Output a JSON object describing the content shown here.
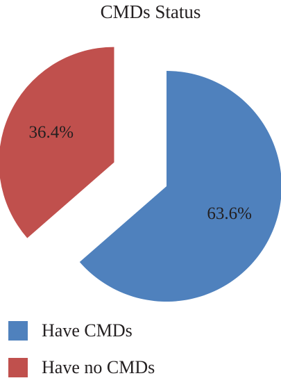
{
  "chart_data": {
    "type": "pie",
    "title": "CMDs Status",
    "categories": [
      "Have CMDs",
      "Have no CMDs"
    ],
    "values": [
      63.6,
      36.4
    ],
    "value_labels": [
      "63.6%",
      "36.4%"
    ],
    "colors": [
      "#4f81bd",
      "#c0504d"
    ],
    "legend": "bottom"
  }
}
